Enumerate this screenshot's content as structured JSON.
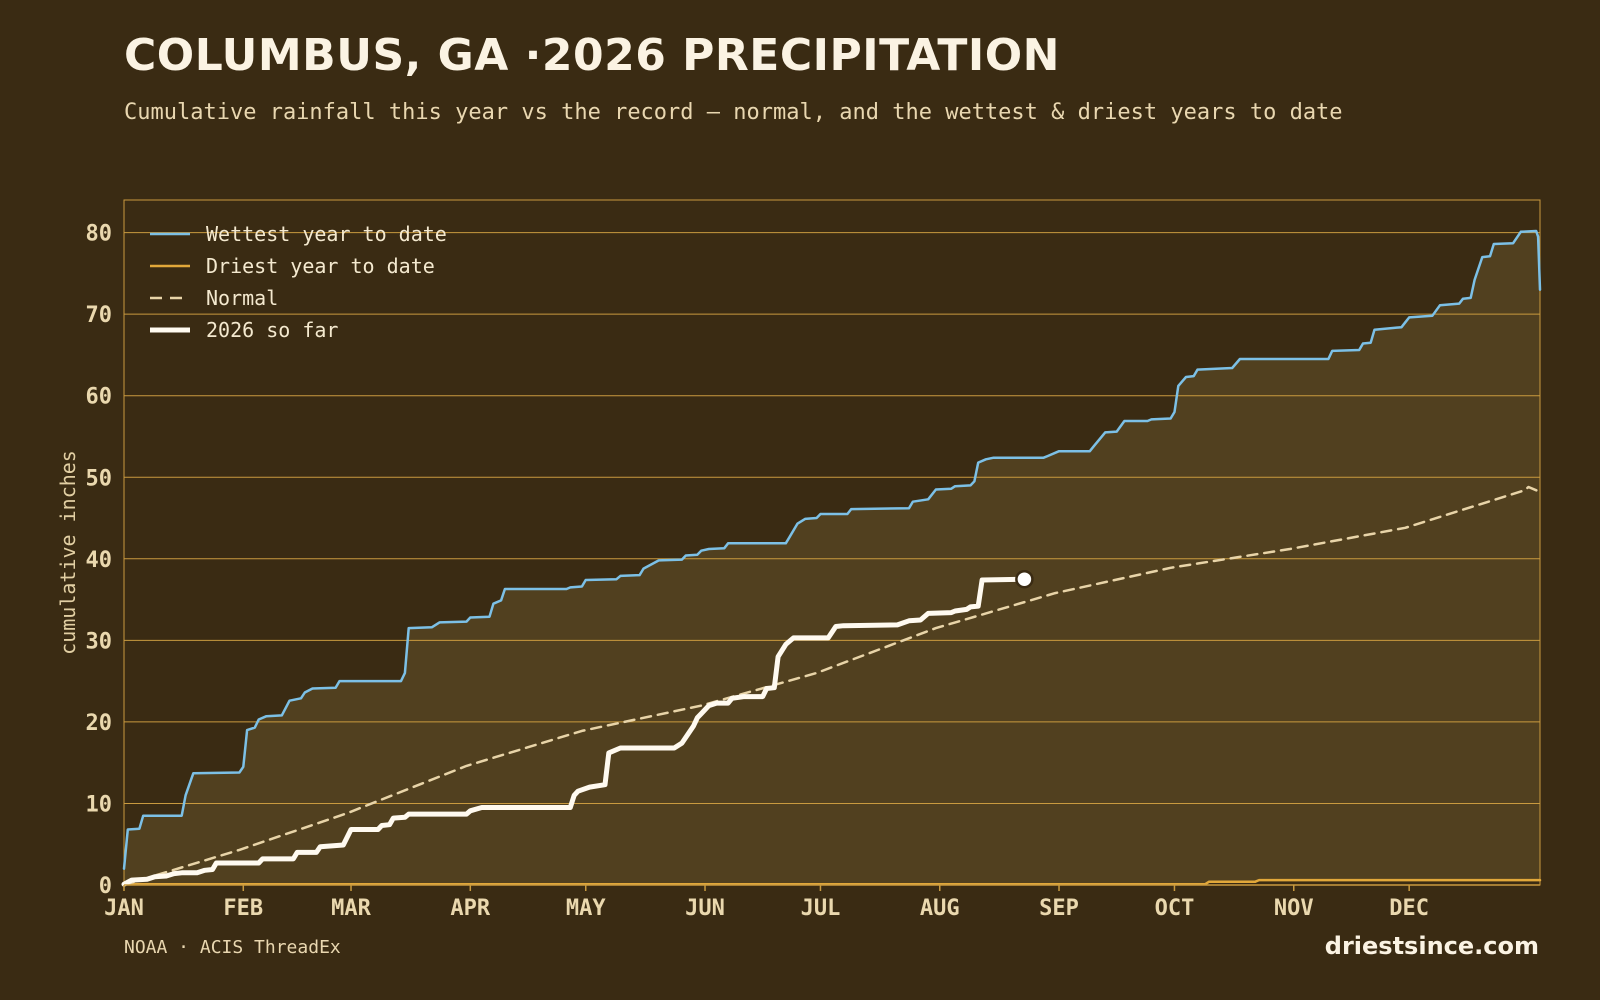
{
  "header": {
    "title": "COLUMBUS, GA ·2026 PRECIPITATION",
    "subtitle": "Cumulative rainfall this year vs the record — normal, and the wettest & driest years to date"
  },
  "footer": {
    "source": "NOAA · ACIS ThreadEx",
    "brand": "driestsince.com"
  },
  "colors": {
    "background": "#3a2b13",
    "band_fill": "#51401f",
    "grid": "#c99a3f",
    "wettest": "#7cc0e6",
    "driest": "#e2a83a",
    "normal": "#e8d4a8",
    "current": "#fffaf0"
  },
  "chart_data": {
    "type": "line",
    "title": "COLUMBUS, GA ·2026 PRECIPITATION",
    "xlabel": "",
    "ylabel": "cumulative inches",
    "x_unit": "day of year",
    "xlim": [
      1,
      366
    ],
    "ylim": [
      0,
      84
    ],
    "yticks": [
      0,
      10,
      20,
      30,
      40,
      50,
      60,
      70,
      80
    ],
    "month_ticks": [
      {
        "label": "JAN",
        "day": 1
      },
      {
        "label": "FEB",
        "day": 32
      },
      {
        "label": "MAR",
        "day": 60
      },
      {
        "label": "APR",
        "day": 91
      },
      {
        "label": "MAY",
        "day": 121
      },
      {
        "label": "JUN",
        "day": 152
      },
      {
        "label": "JUL",
        "day": 182
      },
      {
        "label": "AUG",
        "day": 213
      },
      {
        "label": "SEP",
        "day": 244
      },
      {
        "label": "OCT",
        "day": 274
      },
      {
        "label": "NOV",
        "day": 305
      },
      {
        "label": "DEC",
        "day": 335
      }
    ],
    "grid": true,
    "legend_position": "top-left",
    "series": [
      {
        "name": "Wettest year to date",
        "style": "solid",
        "points": [
          [
            1,
            2
          ],
          [
            2,
            6.8
          ],
          [
            5,
            6.9
          ],
          [
            6,
            8.5
          ],
          [
            16,
            8.5
          ],
          [
            17,
            11
          ],
          [
            19,
            13.7
          ],
          [
            31,
            13.8
          ],
          [
            32,
            14.5
          ],
          [
            33,
            19
          ],
          [
            35,
            19.3
          ],
          [
            36,
            20.3
          ],
          [
            38,
            20.7
          ],
          [
            42,
            20.8
          ],
          [
            44,
            22.6
          ],
          [
            47,
            22.9
          ],
          [
            48,
            23.6
          ],
          [
            50,
            24.1
          ],
          [
            56,
            24.2
          ],
          [
            57,
            25
          ],
          [
            73,
            25
          ],
          [
            74,
            26
          ],
          [
            75,
            31.5
          ],
          [
            81,
            31.6
          ],
          [
            83,
            32.2
          ],
          [
            90,
            32.3
          ],
          [
            91,
            32.8
          ],
          [
            96,
            32.9
          ],
          [
            97,
            34.5
          ],
          [
            99,
            34.9
          ],
          [
            100,
            36.3
          ],
          [
            116,
            36.3
          ],
          [
            117,
            36.5
          ],
          [
            120,
            36.6
          ],
          [
            121,
            37.4
          ],
          [
            129,
            37.5
          ],
          [
            130,
            37.9
          ],
          [
            135,
            38
          ],
          [
            136,
            38.8
          ],
          [
            140,
            39.8
          ],
          [
            146,
            39.9
          ],
          [
            147,
            40.4
          ],
          [
            150,
            40.5
          ],
          [
            151,
            41
          ],
          [
            153,
            41.2
          ],
          [
            157,
            41.3
          ],
          [
            158,
            41.9
          ],
          [
            173,
            41.9
          ],
          [
            174,
            42.7
          ],
          [
            176,
            44.3
          ],
          [
            178,
            44.9
          ],
          [
            181,
            45
          ],
          [
            182,
            45.5
          ],
          [
            189,
            45.5
          ],
          [
            190,
            46.1
          ],
          [
            205,
            46.2
          ],
          [
            206,
            47
          ],
          [
            210,
            47.3
          ],
          [
            212,
            48.5
          ],
          [
            216,
            48.6
          ],
          [
            217,
            48.9
          ],
          [
            221,
            49
          ],
          [
            222,
            49.5
          ],
          [
            223,
            51.8
          ],
          [
            225,
            52.2
          ],
          [
            227,
            52.4
          ],
          [
            240,
            52.4
          ],
          [
            241,
            52.6
          ],
          [
            244,
            53.2
          ],
          [
            252,
            53.2
          ],
          [
            253,
            53.8
          ],
          [
            256,
            55.5
          ],
          [
            259,
            55.6
          ],
          [
            261,
            56.9
          ],
          [
            267,
            56.9
          ],
          [
            268,
            57.1
          ],
          [
            273,
            57.2
          ],
          [
            274,
            58
          ],
          [
            275,
            61.2
          ],
          [
            277,
            62.3
          ],
          [
            279,
            62.4
          ],
          [
            280,
            63.2
          ],
          [
            289,
            63.4
          ],
          [
            291,
            64.5
          ],
          [
            314,
            64.5
          ],
          [
            315,
            65.5
          ],
          [
            322,
            65.6
          ],
          [
            323,
            66.4
          ],
          [
            325,
            66.5
          ],
          [
            326,
            68.1
          ],
          [
            333,
            68.4
          ],
          [
            334,
            69
          ],
          [
            335,
            69.6
          ],
          [
            341,
            69.8
          ],
          [
            343,
            71.1
          ],
          [
            348,
            71.3
          ],
          [
            349,
            71.9
          ],
          [
            351,
            72
          ],
          [
            352,
            74.2
          ],
          [
            354,
            77
          ],
          [
            356,
            77.1
          ],
          [
            357,
            78.6
          ],
          [
            362,
            78.7
          ],
          [
            364,
            80.1
          ],
          [
            368,
            80.2
          ],
          [
            368.5,
            79.5
          ],
          [
            369,
            73
          ]
        ]
      },
      {
        "name": "Driest year to date",
        "style": "solid",
        "points": [
          [
            1,
            0.1
          ],
          [
            282,
            0.1
          ],
          [
            283,
            0.4
          ],
          [
            295,
            0.4
          ],
          [
            296,
            0.6
          ],
          [
            369,
            0.6
          ]
        ]
      },
      {
        "name": "Normal",
        "style": "dashed",
        "points": [
          [
            1,
            0
          ],
          [
            31,
            4.3
          ],
          [
            59,
            8.8
          ],
          [
            90,
            14.6
          ],
          [
            120,
            18.9
          ],
          [
            151,
            22
          ],
          [
            181,
            26
          ],
          [
            212,
            31.5
          ],
          [
            243,
            35.8
          ],
          [
            273,
            38.9
          ],
          [
            304,
            41.2
          ],
          [
            334,
            43.8
          ],
          [
            365,
            48.4
          ],
          [
            366,
            48.8
          ],
          [
            369,
            48.2
          ]
        ]
      },
      {
        "name": "2026 so far",
        "style": "bold",
        "points": [
          [
            1,
            0.1
          ],
          [
            3,
            0.6
          ],
          [
            7,
            0.7
          ],
          [
            9,
            1
          ],
          [
            12,
            1.1
          ],
          [
            14,
            1.4
          ],
          [
            16,
            1.5
          ],
          [
            20,
            1.5
          ],
          [
            22,
            1.8
          ],
          [
            24,
            1.9
          ],
          [
            25,
            2.7
          ],
          [
            36,
            2.7
          ],
          [
            37,
            3.2
          ],
          [
            45,
            3.2
          ],
          [
            46,
            4
          ],
          [
            51,
            4
          ],
          [
            52,
            4.7
          ],
          [
            58,
            4.9
          ],
          [
            60,
            6.8
          ],
          [
            67,
            6.8
          ],
          [
            68,
            7.3
          ],
          [
            70,
            7.4
          ],
          [
            71,
            8.2
          ],
          [
            74,
            8.3
          ],
          [
            75,
            8.7
          ],
          [
            90,
            8.7
          ],
          [
            91,
            9.1
          ],
          [
            94,
            9.5
          ],
          [
            117,
            9.5
          ],
          [
            118,
            11
          ],
          [
            119,
            11.5
          ],
          [
            122,
            12
          ],
          [
            126,
            12.3
          ],
          [
            127,
            16.2
          ],
          [
            130,
            16.8
          ],
          [
            144,
            16.8
          ],
          [
            146,
            17.4
          ],
          [
            149,
            19.5
          ],
          [
            150,
            20.5
          ],
          [
            151,
            21
          ],
          [
            153,
            22
          ],
          [
            155,
            22.3
          ],
          [
            158,
            22.3
          ],
          [
            159,
            22.9
          ],
          [
            162,
            23.1
          ],
          [
            167,
            23.1
          ],
          [
            168,
            24.1
          ],
          [
            170,
            24.2
          ],
          [
            171,
            28
          ],
          [
            173,
            29.5
          ],
          [
            175,
            30.3
          ],
          [
            184,
            30.3
          ],
          [
            186,
            31.7
          ],
          [
            188,
            31.8
          ],
          [
            202,
            31.9
          ],
          [
            205,
            32.4
          ],
          [
            208,
            32.5
          ],
          [
            210,
            33.3
          ],
          [
            216,
            33.4
          ],
          [
            217,
            33.6
          ],
          [
            220,
            33.8
          ],
          [
            221,
            34.1
          ],
          [
            223,
            34.2
          ],
          [
            224,
            37.4
          ],
          [
            235,
            37.5
          ]
        ]
      }
    ],
    "current_marker": {
      "x": 235,
      "y": 37.5,
      "series": "2026 so far"
    }
  }
}
